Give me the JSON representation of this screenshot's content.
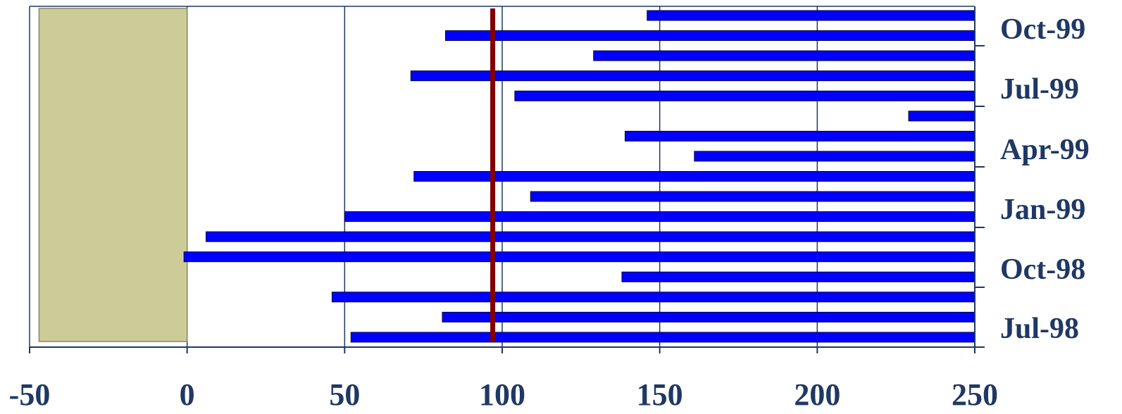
{
  "chart_data": {
    "type": "bar",
    "orientation": "horizontal",
    "title": "",
    "xlabel": "",
    "ylabel": "",
    "xlim": [
      -50,
      250
    ],
    "x_ticks": [
      -50,
      0,
      50,
      100,
      150,
      200,
      250
    ],
    "x_tick_labels": [
      "-50",
      "0",
      "50",
      "100",
      "150",
      "200",
      "250"
    ],
    "y_tick_labels": [
      "Oct-99",
      "Jul-99",
      "Apr-99",
      "Jan-99",
      "Oct-98",
      "Jul-98"
    ],
    "grid": "vertical",
    "bars": [
      {
        "row": 1,
        "start": 146,
        "end": 250
      },
      {
        "row": 2,
        "start": 82,
        "end": 250
      },
      {
        "row": 3,
        "start": 129,
        "end": 250
      },
      {
        "row": 4,
        "start": 71,
        "end": 250
      },
      {
        "row": 5,
        "start": 104,
        "end": 250
      },
      {
        "row": 6,
        "start": 229,
        "end": 250
      },
      {
        "row": 7,
        "start": 139,
        "end": 250
      },
      {
        "row": 8,
        "start": 161,
        "end": 250
      },
      {
        "row": 9,
        "start": 72,
        "end": 250
      },
      {
        "row": 10,
        "start": 109,
        "end": 250
      },
      {
        "row": 11,
        "start": 50,
        "end": 250
      },
      {
        "row": 12,
        "start": 6,
        "end": 250
      },
      {
        "row": 13,
        "start": -1,
        "end": 250
      },
      {
        "row": 14,
        "start": 138,
        "end": 250
      },
      {
        "row": 15,
        "start": 46,
        "end": 250
      },
      {
        "row": 16,
        "start": 81,
        "end": 250
      },
      {
        "row": 17,
        "start": 52,
        "end": 250
      }
    ],
    "shaded_region": {
      "from": -47,
      "to": 0,
      "color": "#cccc99"
    },
    "reference_line": {
      "x": 97,
      "color": "#800000"
    },
    "colors": {
      "bar": "#0000ff",
      "axis": "#1f3864",
      "text": "#1f3864"
    }
  }
}
